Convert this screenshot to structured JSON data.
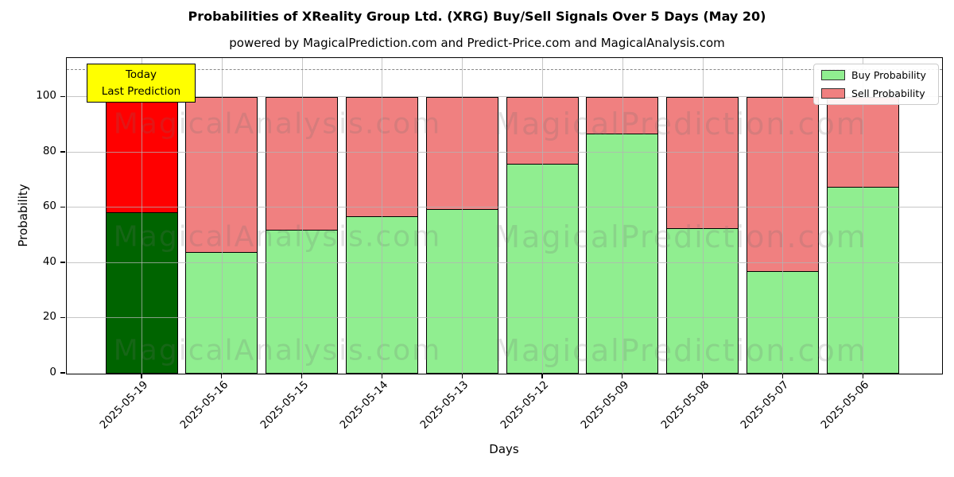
{
  "title": "Probabilities of XReality Group Ltd. (XRG) Buy/Sell Signals Over 5 Days (May 20)",
  "subtitle": "powered by MagicalPrediction.com and Predict-Price.com and MagicalAnalysis.com",
  "axes": {
    "ylabel": "Probability",
    "xlabel": "Days",
    "yticks": [
      0,
      20,
      40,
      60,
      80,
      100
    ],
    "dashed_line_y": 110
  },
  "legend": {
    "items": [
      {
        "label": "Buy Probability",
        "color": "#90EE90"
      },
      {
        "label": "Sell Probability",
        "color": "#F08080"
      }
    ]
  },
  "annotation": {
    "lines": [
      "Today",
      "Last Prediction"
    ],
    "bg_color": "#FFFF00"
  },
  "watermarks": {
    "left": "MagicalAnalysis.com",
    "right": "MagicalPrediction.com"
  },
  "chart_data": {
    "type": "bar",
    "stacked": true,
    "title": "Probabilities of XReality Group Ltd. (XRG) Buy/Sell Signals Over 5 Days (May 20)",
    "xlabel": "Days",
    "ylabel": "Probability",
    "ylim": [
      0,
      114
    ],
    "grid": true,
    "legend_position": "upper right",
    "categories": [
      "2025-05-19",
      "2025-05-16",
      "2025-05-15",
      "2025-05-14",
      "2025-05-13",
      "2025-05-12",
      "2025-05-09",
      "2025-05-08",
      "2025-05-07",
      "2025-05-06"
    ],
    "series": [
      {
        "name": "Buy Probability",
        "color": "#90EE90",
        "values": [
          58.5,
          44,
          52,
          57,
          59.5,
          76,
          87,
          52.5,
          37,
          67.5
        ]
      },
      {
        "name": "Sell Probability",
        "color": "#F08080",
        "values": [
          41.5,
          56,
          48,
          43,
          40.5,
          24,
          13,
          47.5,
          63,
          32.5
        ]
      }
    ],
    "highlight": {
      "index": 0,
      "buy_color": "#006400",
      "sell_color": "#FF0000",
      "note": "Today / Last Prediction"
    },
    "dashed_guide_y": 110
  }
}
